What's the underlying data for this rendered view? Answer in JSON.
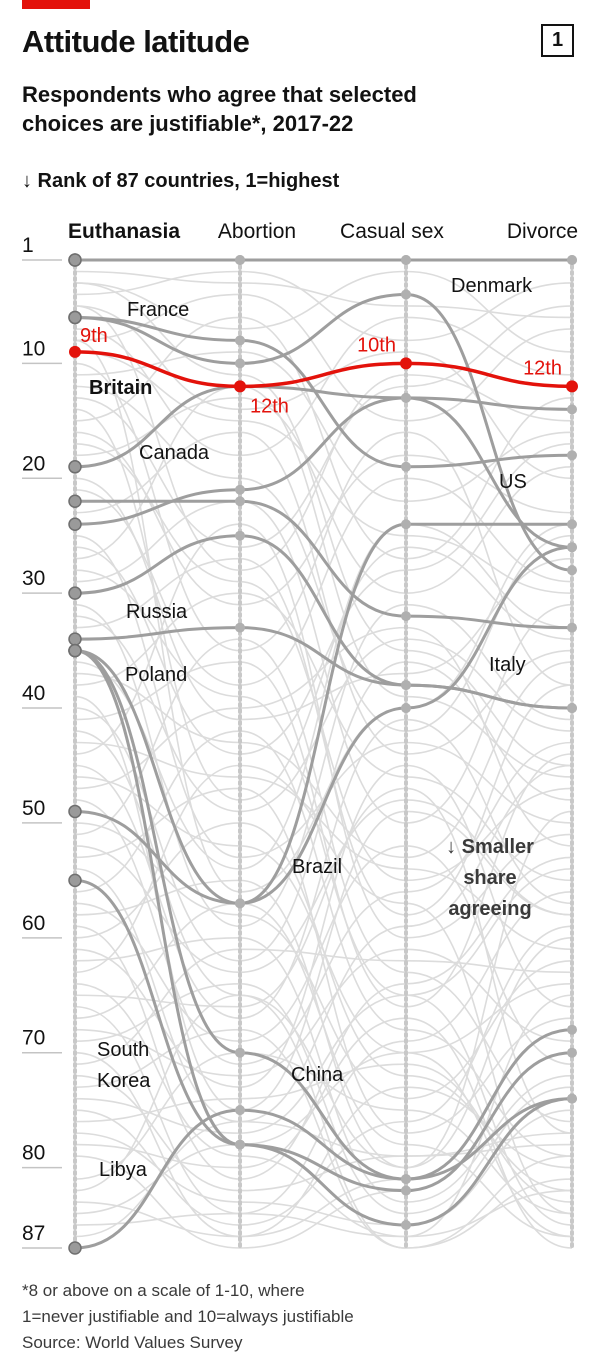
{
  "header": {
    "title": "Attitude latitude",
    "chart_number": "1",
    "subtitle_line1": "Respondents who agree that selected",
    "subtitle_line2": "choices are justifiable*, 2017-22",
    "axis_note": "↓ Rank of 87 countries, 1=highest"
  },
  "footnote": {
    "line1": "*8 or above on a scale of 1-10, where",
    "line2": "1=never justifiable and 10=always justifiable",
    "source": "Source: World Values Survey"
  },
  "colors": {
    "accent": "#e3120b",
    "highlight_line": "#9e9e9e",
    "background_line": "#dcdcdc",
    "axis_dot": "#c8c8c8"
  },
  "chart_data": {
    "type": "line",
    "title": "Attitude latitude",
    "y_axis_label": "Rank of 87 countries, 1=highest",
    "y_reversed": true,
    "ylim": [
      1,
      87
    ],
    "y_ticks": [
      1,
      10,
      20,
      30,
      40,
      50,
      60,
      70,
      80,
      87
    ],
    "categories": [
      "Euthanasia",
      "Abortion",
      "Casual sex",
      "Divorce"
    ],
    "bold_category": "Euthanasia",
    "annotation": "↓ Smaller share agreeing",
    "annotation_lines": [
      "↓ Smaller",
      "share",
      "agreeing"
    ],
    "featured": {
      "name": "Britain",
      "values": [
        9,
        12,
        10,
        12
      ],
      "value_labels": [
        "9th",
        "12th",
        "10th",
        "12th"
      ]
    },
    "series": [
      {
        "name": "",
        "values": [
          1,
          1,
          1,
          1
        ]
      },
      {
        "name": "Denmark",
        "values": [
          1,
          1,
          1,
          1
        ]
      },
      {
        "name": "France",
        "values": [
          6,
          8,
          19,
          18
        ]
      },
      {
        "name": "",
        "values": [
          6,
          10,
          4,
          28
        ]
      },
      {
        "name": "Canada",
        "values": [
          19,
          12,
          13,
          14
        ]
      },
      {
        "name": "",
        "values": [
          22,
          22,
          32,
          33
        ]
      },
      {
        "name": "",
        "values": [
          24,
          21,
          13,
          26
        ]
      },
      {
        "name": "Russia",
        "values": [
          30,
          25,
          38,
          40
        ]
      },
      {
        "name": "Poland",
        "values": [
          34,
          33,
          38,
          40
        ]
      },
      {
        "name": "",
        "values": [
          35,
          57,
          24,
          24
        ]
      },
      {
        "name": "",
        "values": [
          49,
          57,
          40,
          26
        ]
      },
      {
        "name": "",
        "values": [
          55,
          78,
          85,
          74
        ]
      },
      {
        "name": "China",
        "values": [
          35,
          70,
          81,
          68
        ]
      },
      {
        "name": "",
        "values": [
          35,
          78,
          82,
          70
        ]
      },
      {
        "name": "Libya",
        "values": [
          87,
          75,
          81,
          74
        ]
      }
    ],
    "labels": [
      {
        "text": "Denmark",
        "near": "Casual sex–Divorce, rank 3"
      },
      {
        "text": "France",
        "near": "Euthanasia–Abortion, rank 5"
      },
      {
        "text": "Britain",
        "near": "Euthanasia, rank 12"
      },
      {
        "text": "Canada",
        "near": "Euthanasia–Abortion, rank 17"
      },
      {
        "text": "US",
        "near": "Casual sex–Divorce, rank 20"
      },
      {
        "text": "Russia",
        "near": "Euthanasia–Abortion, rank 32"
      },
      {
        "text": "Poland",
        "near": "Euthanasia–Abortion, rank 37"
      },
      {
        "text": "Italy",
        "near": "Casual sex–Divorce, rank 37"
      },
      {
        "text": "Brazil",
        "near": "Abortion–Casual sex, rank 54"
      },
      {
        "text": "South Korea",
        "near": "Euthanasia, rank 70"
      },
      {
        "text": "China",
        "near": "Abortion–Casual sex, rank 72"
      },
      {
        "text": "Libya",
        "near": "Euthanasia, rank 80"
      }
    ]
  }
}
